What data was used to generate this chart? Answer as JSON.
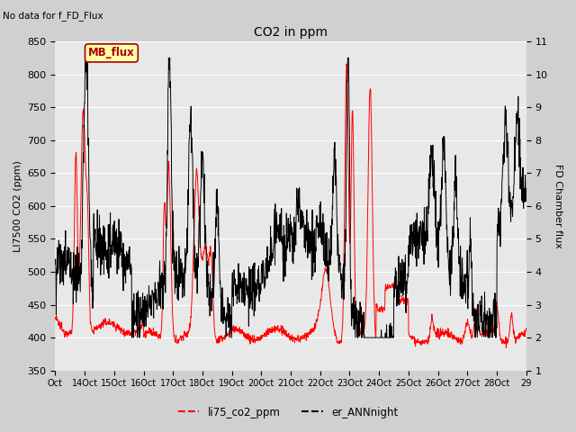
{
  "title": "CO2 in ppm",
  "ylabel_left": "LI7500 CO2 (ppm)",
  "ylabel_right": "FD Chamber flux",
  "top_left_text": "No data for f_FD_Flux",
  "annotation_text": "MB_flux",
  "ylim_left": [
    350,
    850
  ],
  "ylim_right": [
    1.0,
    11.0
  ],
  "yticks_left": [
    350,
    400,
    450,
    500,
    550,
    600,
    650,
    700,
    750,
    800,
    850
  ],
  "yticks_right": [
    1.0,
    2.0,
    3.0,
    4.0,
    5.0,
    6.0,
    7.0,
    8.0,
    9.0,
    10.0,
    11.0
  ],
  "xtick_labels": [
    "Oct",
    "14Oct",
    "15Oct",
    "16Oct",
    "17Oct",
    "18Oct",
    "19Oct",
    "20Oct",
    "21Oct",
    "22Oct",
    "23Oct",
    "24Oct",
    "25Oct",
    "26Oct",
    "27Oct",
    "28Oct",
    "29"
  ],
  "legend_labels": [
    "li75_co2_ppm",
    "er_ANNnight"
  ],
  "line_colors": [
    "#ff0000",
    "#000000"
  ],
  "fig_bg": "#d0d0d0",
  "plot_bg": "#e8e8e8",
  "annotation_bg": "#ffffaa",
  "annotation_border": "#aa0000",
  "annotation_text_color": "#aa0000",
  "grid_color": "#ffffff",
  "figsize": [
    6.4,
    4.8
  ],
  "dpi": 100
}
